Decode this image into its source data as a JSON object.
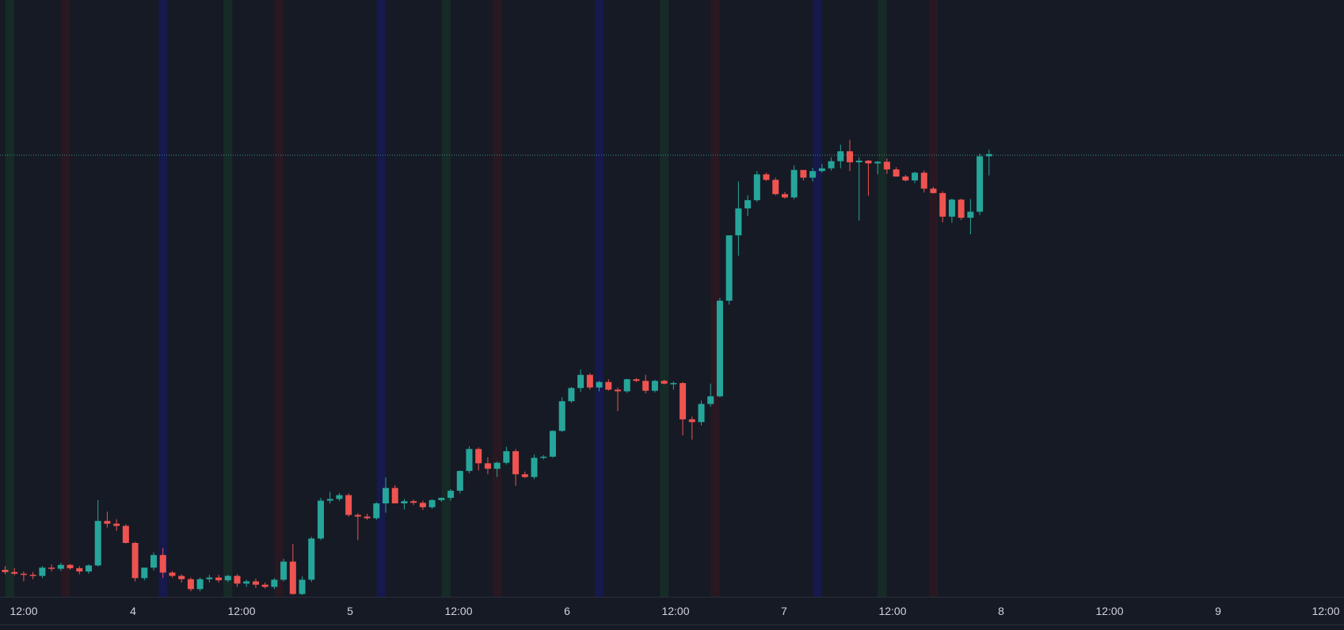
{
  "chart_data": {
    "type": "candlestick",
    "title": "",
    "xlabel": "",
    "ylabel": "",
    "x_tick_labels": [
      "12:00",
      "4",
      "12:00",
      "5",
      "12:00",
      "6",
      "12:00",
      "7",
      "12:00",
      "8",
      "12:00",
      "9",
      "12:00"
    ],
    "x_range_bars": [
      0,
      144
    ],
    "y_range": [
      0,
      100
    ],
    "price_line": 80.4,
    "grid": false,
    "legend": "none",
    "colors": {
      "background": "#161a25",
      "up": "#26a69a",
      "down": "#ef5350",
      "price_line": "#3f8f86",
      "axis_text": "#d1d4dc",
      "axis_border": "#2a2e39"
    },
    "session_bands": [
      {
        "bar": 0.5,
        "color": "#173a2a"
      },
      {
        "bar": 6.5,
        "color": "#3a1820"
      },
      {
        "bar": 17.0,
        "color": "#151a6e"
      },
      {
        "bar": 24.0,
        "color": "#173a2a"
      },
      {
        "bar": 29.5,
        "color": "#3a1820"
      },
      {
        "bar": 40.5,
        "color": "#151a6e"
      },
      {
        "bar": 47.5,
        "color": "#173a2a"
      },
      {
        "bar": 53.0,
        "color": "#3a1820"
      },
      {
        "bar": 64.0,
        "color": "#151a6e"
      },
      {
        "bar": 71.0,
        "color": "#173a2a"
      },
      {
        "bar": 76.5,
        "color": "#3a1820"
      },
      {
        "bar": 87.5,
        "color": "#151a6e"
      },
      {
        "bar": 94.5,
        "color": "#173a2a"
      },
      {
        "bar": 100.0,
        "color": "#3a1820"
      }
    ],
    "candles": [
      {
        "o": 4.9,
        "h": 5.6,
        "l": 4.1,
        "c": 4.5
      },
      {
        "o": 4.5,
        "h": 5.2,
        "l": 3.9,
        "c": 4.2
      },
      {
        "o": 4.2,
        "h": 4.6,
        "l": 2.8,
        "c": 4.0
      },
      {
        "o": 4.0,
        "h": 4.5,
        "l": 3.2,
        "c": 3.8
      },
      {
        "o": 3.8,
        "h": 5.6,
        "l": 3.4,
        "c": 5.3
      },
      {
        "o": 5.3,
        "h": 5.9,
        "l": 4.6,
        "c": 5.1
      },
      {
        "o": 5.1,
        "h": 6.2,
        "l": 4.7,
        "c": 5.8
      },
      {
        "o": 5.8,
        "h": 6.0,
        "l": 4.9,
        "c": 5.2
      },
      {
        "o": 5.2,
        "h": 5.6,
        "l": 4.1,
        "c": 4.6
      },
      {
        "o": 4.6,
        "h": 5.9,
        "l": 4.2,
        "c": 5.7
      },
      {
        "o": 5.7,
        "h": 17.6,
        "l": 5.5,
        "c": 13.8
      },
      {
        "o": 13.8,
        "h": 15.5,
        "l": 12.6,
        "c": 13.3
      },
      {
        "o": 13.3,
        "h": 14.1,
        "l": 12.0,
        "c": 12.9
      },
      {
        "o": 12.9,
        "h": 13.2,
        "l": 9.7,
        "c": 9.8
      },
      {
        "o": 9.8,
        "h": 10.0,
        "l": 2.8,
        "c": 3.4
      },
      {
        "o": 3.4,
        "h": 5.0,
        "l": 3.0,
        "c": 5.3
      },
      {
        "o": 5.3,
        "h": 8.1,
        "l": 4.8,
        "c": 7.6
      },
      {
        "o": 7.6,
        "h": 8.9,
        "l": 3.4,
        "c": 4.4
      },
      {
        "o": 4.4,
        "h": 4.7,
        "l": 3.5,
        "c": 3.8
      },
      {
        "o": 3.8,
        "h": 4.1,
        "l": 2.6,
        "c": 3.2
      },
      {
        "o": 3.2,
        "h": 3.5,
        "l": 1.0,
        "c": 1.4
      },
      {
        "o": 1.4,
        "h": 3.5,
        "l": 1.0,
        "c": 3.2
      },
      {
        "o": 3.2,
        "h": 4.0,
        "l": 2.6,
        "c": 3.5
      },
      {
        "o": 3.5,
        "h": 4.0,
        "l": 2.6,
        "c": 3.0
      },
      {
        "o": 3.0,
        "h": 4.0,
        "l": 2.7,
        "c": 3.8
      },
      {
        "o": 3.8,
        "h": 4.1,
        "l": 1.8,
        "c": 2.4
      },
      {
        "o": 2.4,
        "h": 3.1,
        "l": 1.8,
        "c": 2.8
      },
      {
        "o": 2.8,
        "h": 3.3,
        "l": 1.6,
        "c": 2.2
      },
      {
        "o": 2.2,
        "h": 2.6,
        "l": 1.5,
        "c": 1.8
      },
      {
        "o": 1.8,
        "h": 3.4,
        "l": 1.4,
        "c": 3.1
      },
      {
        "o": 3.1,
        "h": 6.9,
        "l": 2.8,
        "c": 6.4
      },
      {
        "o": 6.4,
        "h": 9.6,
        "l": 0.4,
        "c": 0.5
      },
      {
        "o": 0.5,
        "h": 3.7,
        "l": 0.3,
        "c": 3.1
      },
      {
        "o": 3.1,
        "h": 10.9,
        "l": 2.7,
        "c": 10.6
      },
      {
        "o": 10.6,
        "h": 18.0,
        "l": 10.3,
        "c": 17.5
      },
      {
        "o": 17.5,
        "h": 19.1,
        "l": 17.0,
        "c": 17.8
      },
      {
        "o": 17.8,
        "h": 18.9,
        "l": 17.4,
        "c": 18.5
      },
      {
        "o": 18.5,
        "h": 18.8,
        "l": 14.6,
        "c": 14.9
      },
      {
        "o": 14.9,
        "h": 15.2,
        "l": 10.3,
        "c": 14.6
      },
      {
        "o": 14.6,
        "h": 15.1,
        "l": 14.0,
        "c": 14.3
      },
      {
        "o": 14.3,
        "h": 17.2,
        "l": 14.0,
        "c": 17.0
      },
      {
        "o": 17.0,
        "h": 21.7,
        "l": 15.3,
        "c": 19.8
      },
      {
        "o": 19.8,
        "h": 20.3,
        "l": 17.4,
        "c": 17.0
      },
      {
        "o": 17.0,
        "h": 17.8,
        "l": 15.9,
        "c": 17.4
      },
      {
        "o": 17.4,
        "h": 17.7,
        "l": 16.7,
        "c": 17.1
      },
      {
        "o": 17.1,
        "h": 17.5,
        "l": 15.8,
        "c": 16.3
      },
      {
        "o": 16.3,
        "h": 17.8,
        "l": 16.0,
        "c": 17.6
      },
      {
        "o": 17.6,
        "h": 18.1,
        "l": 17.3,
        "c": 18.0
      },
      {
        "o": 18.0,
        "h": 19.6,
        "l": 17.5,
        "c": 19.3
      },
      {
        "o": 19.3,
        "h": 23.0,
        "l": 18.8,
        "c": 22.9
      },
      {
        "o": 22.9,
        "h": 27.4,
        "l": 22.5,
        "c": 26.9
      },
      {
        "o": 26.9,
        "h": 27.2,
        "l": 23.0,
        "c": 24.3
      },
      {
        "o": 24.3,
        "h": 25.4,
        "l": 22.3,
        "c": 23.3
      },
      {
        "o": 23.3,
        "h": 24.6,
        "l": 21.8,
        "c": 24.4
      },
      {
        "o": 24.4,
        "h": 27.3,
        "l": 24.1,
        "c": 26.5
      },
      {
        "o": 26.5,
        "h": 26.9,
        "l": 20.2,
        "c": 22.3
      },
      {
        "o": 22.3,
        "h": 22.8,
        "l": 21.6,
        "c": 21.8
      },
      {
        "o": 21.8,
        "h": 25.9,
        "l": 21.4,
        "c": 25.3
      },
      {
        "o": 25.3,
        "h": 25.8,
        "l": 25.0,
        "c": 25.5
      },
      {
        "o": 25.5,
        "h": 30.3,
        "l": 25.3,
        "c": 30.2
      },
      {
        "o": 30.2,
        "h": 36.3,
        "l": 30.0,
        "c": 35.6
      },
      {
        "o": 35.6,
        "h": 38.2,
        "l": 35.3,
        "c": 38.0
      },
      {
        "o": 38.0,
        "h": 41.4,
        "l": 37.3,
        "c": 40.4
      },
      {
        "o": 40.4,
        "h": 40.7,
        "l": 37.7,
        "c": 38.1
      },
      {
        "o": 38.1,
        "h": 39.3,
        "l": 37.4,
        "c": 39.1
      },
      {
        "o": 39.1,
        "h": 39.6,
        "l": 37.5,
        "c": 37.7
      },
      {
        "o": 37.7,
        "h": 38.1,
        "l": 33.8,
        "c": 37.4
      },
      {
        "o": 37.4,
        "h": 39.7,
        "l": 37.1,
        "c": 39.6
      },
      {
        "o": 39.6,
        "h": 39.8,
        "l": 39.1,
        "c": 39.3
      },
      {
        "o": 39.3,
        "h": 40.4,
        "l": 37.0,
        "c": 37.5
      },
      {
        "o": 37.5,
        "h": 39.5,
        "l": 37.2,
        "c": 39.3
      },
      {
        "o": 39.3,
        "h": 39.5,
        "l": 38.7,
        "c": 38.8
      },
      {
        "o": 38.8,
        "h": 39.2,
        "l": 37.7,
        "c": 38.9
      },
      {
        "o": 38.9,
        "h": 39.1,
        "l": 29.4,
        "c": 32.3
      },
      {
        "o": 32.3,
        "h": 32.8,
        "l": 28.6,
        "c": 31.8
      },
      {
        "o": 31.8,
        "h": 35.7,
        "l": 31.2,
        "c": 35.1
      },
      {
        "o": 35.1,
        "h": 38.8,
        "l": 34.6,
        "c": 36.5
      },
      {
        "o": 36.5,
        "h": 54.4,
        "l": 36.3,
        "c": 53.9
      },
      {
        "o": 53.9,
        "h": 65.8,
        "l": 53.2,
        "c": 65.8
      },
      {
        "o": 65.8,
        "h": 75.6,
        "l": 62.1,
        "c": 70.7
      },
      {
        "o": 70.7,
        "h": 73.1,
        "l": 69.3,
        "c": 72.2
      },
      {
        "o": 72.2,
        "h": 77.5,
        "l": 71.9,
        "c": 76.9
      },
      {
        "o": 76.9,
        "h": 77.2,
        "l": 75.7,
        "c": 75.9
      },
      {
        "o": 75.9,
        "h": 76.3,
        "l": 73.1,
        "c": 73.3
      },
      {
        "o": 73.3,
        "h": 73.7,
        "l": 72.5,
        "c": 72.7
      },
      {
        "o": 72.7,
        "h": 78.5,
        "l": 72.4,
        "c": 77.7
      },
      {
        "o": 77.7,
        "h": 77.5,
        "l": 75.8,
        "c": 76.3
      },
      {
        "o": 76.3,
        "h": 78.1,
        "l": 75.6,
        "c": 77.5
      },
      {
        "o": 77.5,
        "h": 78.8,
        "l": 77.2,
        "c": 78.0
      },
      {
        "o": 78.0,
        "h": 80.0,
        "l": 77.6,
        "c": 79.3
      },
      {
        "o": 79.3,
        "h": 82.3,
        "l": 78.0,
        "c": 81.1
      },
      {
        "o": 81.1,
        "h": 83.2,
        "l": 77.5,
        "c": 79.1
      },
      {
        "o": 79.1,
        "h": 80.0,
        "l": 68.5,
        "c": 79.4
      },
      {
        "o": 79.4,
        "h": 79.5,
        "l": 73.0,
        "c": 78.9
      },
      {
        "o": 78.9,
        "h": 79.3,
        "l": 76.9,
        "c": 79.2
      },
      {
        "o": 79.2,
        "h": 79.8,
        "l": 77.0,
        "c": 77.8
      },
      {
        "o": 77.8,
        "h": 78.2,
        "l": 76.5,
        "c": 76.5
      },
      {
        "o": 76.5,
        "h": 76.8,
        "l": 75.6,
        "c": 75.8
      },
      {
        "o": 75.8,
        "h": 77.4,
        "l": 75.3,
        "c": 77.2
      },
      {
        "o": 77.2,
        "h": 77.6,
        "l": 73.6,
        "c": 74.3
      },
      {
        "o": 74.3,
        "h": 74.6,
        "l": 73.4,
        "c": 73.5
      },
      {
        "o": 73.5,
        "h": 73.8,
        "l": 68.2,
        "c": 69.2
      },
      {
        "o": 69.2,
        "h": 72.5,
        "l": 68.1,
        "c": 72.3
      },
      {
        "o": 72.3,
        "h": 72.5,
        "l": 68.6,
        "c": 69.0
      },
      {
        "o": 69.0,
        "h": 72.4,
        "l": 66.0,
        "c": 70.1
      },
      {
        "o": 70.1,
        "h": 80.7,
        "l": 69.5,
        "c": 80.2
      },
      {
        "o": 80.2,
        "h": 81.4,
        "l": 76.7,
        "c": 80.6
      }
    ]
  }
}
